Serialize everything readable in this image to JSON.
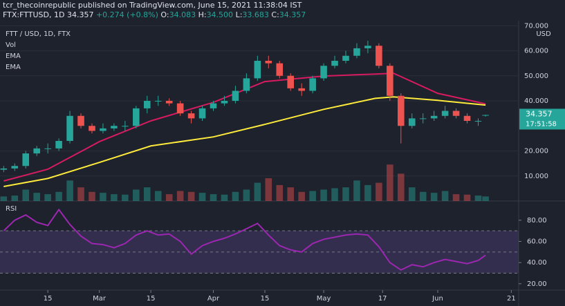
{
  "header": {
    "publisher": "tcr_thecoinrepublic published on TradingView.com, June 15, 2021 11:38:04 IST",
    "symbol": "FTX:FTTUSD, 1D",
    "last": "34.357",
    "change": "+0.274 (+0.8%)",
    "quote": [
      {
        "label": "O:",
        "value": "34.083"
      },
      {
        "label": "H:",
        "value": "34.500"
      },
      {
        "label": "L:",
        "value": "33.683"
      },
      {
        "label": "C:",
        "value": "34.357"
      }
    ]
  },
  "chart_data": [
    {
      "type": "candlestick",
      "title": "FTT / USD, 1D, FTX",
      "volume_label": "Vol",
      "currency": "USD",
      "last_value": 34.357,
      "last_time": "17:51:58",
      "up_color": "#26a69a",
      "down_color": "#ef5350",
      "x": [
        "2021-02-03",
        "2021-02-06",
        "2021-02-09",
        "2021-02-12",
        "2021-02-15",
        "2021-02-18",
        "2021-02-21",
        "2021-02-24",
        "2021-02-27",
        "2021-03-02",
        "2021-03-05",
        "2021-03-08",
        "2021-03-11",
        "2021-03-14",
        "2021-03-17",
        "2021-03-20",
        "2021-03-23",
        "2021-03-26",
        "2021-03-29",
        "2021-04-01",
        "2021-04-04",
        "2021-04-07",
        "2021-04-10",
        "2021-04-13",
        "2021-04-16",
        "2021-04-19",
        "2021-04-22",
        "2021-04-25",
        "2021-04-28",
        "2021-05-01",
        "2021-05-04",
        "2021-05-07",
        "2021-05-10",
        "2021-05-13",
        "2021-05-16",
        "2021-05-19",
        "2021-05-22",
        "2021-05-25",
        "2021-05-28",
        "2021-05-31",
        "2021-06-03",
        "2021-06-06",
        "2021-06-09",
        "2021-06-12",
        "2021-06-14"
      ],
      "open": [
        12.5,
        13,
        14,
        19,
        21,
        21,
        24,
        34,
        30,
        28,
        29,
        30,
        30,
        37,
        40,
        40,
        39,
        35,
        33,
        37,
        39,
        40,
        44,
        49,
        56,
        55,
        50,
        45,
        44,
        49,
        54,
        56,
        58,
        61,
        62,
        54,
        42,
        30,
        33,
        33,
        34,
        36,
        34,
        32,
        34.083
      ],
      "high": [
        14,
        15,
        20,
        22,
        23,
        25,
        36,
        35,
        31,
        31,
        31,
        32,
        38,
        42,
        42,
        41,
        40,
        36,
        38,
        40,
        42,
        46,
        51,
        58,
        58,
        56,
        51,
        47,
        50,
        55,
        58,
        60,
        63,
        64,
        63,
        55,
        43,
        35,
        35,
        36,
        38,
        37,
        35,
        33,
        34.5
      ],
      "low": [
        11.5,
        12,
        13,
        18,
        19,
        20,
        23,
        29,
        27,
        27,
        28,
        28,
        29,
        35,
        38,
        38,
        34,
        31,
        32,
        36,
        38,
        39,
        43,
        48,
        53,
        49,
        44,
        42,
        43,
        48,
        53,
        55,
        57,
        59,
        53,
        40,
        23,
        29,
        31,
        32,
        33,
        33,
        31,
        30,
        33.683
      ],
      "close": [
        13,
        14,
        19,
        21,
        21,
        24,
        34,
        30,
        28,
        29,
        30,
        30,
        37,
        40,
        40,
        39,
        35,
        33,
        37,
        39,
        40,
        44,
        49,
        56,
        55,
        50,
        45,
        44,
        49,
        54,
        56,
        58,
        61,
        62,
        54,
        42,
        30,
        33,
        33,
        34,
        36,
        34,
        32,
        32,
        34.357
      ],
      "volume": [
        10,
        12,
        25,
        18,
        15,
        20,
        45,
        30,
        20,
        18,
        15,
        14,
        25,
        30,
        22,
        15,
        22,
        20,
        18,
        15,
        14,
        20,
        25,
        40,
        50,
        35,
        30,
        20,
        22,
        25,
        28,
        30,
        45,
        35,
        40,
        80,
        60,
        30,
        20,
        18,
        22,
        15,
        14,
        12,
        10
      ],
      "series": [
        {
          "name": "EMA",
          "color": "#d81b60",
          "x": [
            "2021-02-03",
            "2021-02-15",
            "2021-03-01",
            "2021-03-15",
            "2021-04-01",
            "2021-04-15",
            "2021-05-01",
            "2021-05-15",
            "2021-05-20",
            "2021-06-01",
            "2021-06-14"
          ],
          "values": [
            8,
            12.7,
            23.7,
            32,
            39.4,
            47.7,
            49.9,
            50.7,
            51,
            43,
            38.8
          ]
        },
        {
          "name": "EMA",
          "color": "#ffeb3b",
          "x": [
            "2021-02-03",
            "2021-02-15",
            "2021-03-01",
            "2021-03-15",
            "2021-04-01",
            "2021-04-15",
            "2021-05-01",
            "2021-05-15",
            "2021-05-20",
            "2021-06-01",
            "2021-06-14"
          ],
          "values": [
            5.8,
            9,
            15.4,
            22,
            25.6,
            30.6,
            36.6,
            41,
            41.6,
            40.2,
            38.3
          ]
        }
      ],
      "xlim": [
        "2021-02-02",
        "2021-06-23"
      ],
      "ylim": [
        0,
        72
      ],
      "yticks": [
        {
          "value": 10,
          "label": "10.000"
        },
        {
          "value": 20,
          "label": "20.000"
        },
        {
          "value": 40,
          "label": "40.000"
        },
        {
          "value": 50,
          "label": "50.000"
        },
        {
          "value": 60,
          "label": "60.000"
        },
        {
          "value": 70,
          "label": "70.000"
        }
      ]
    },
    {
      "type": "line",
      "title": "RSI",
      "color": "#9c27b0",
      "band_color": "#7e57c2",
      "x": [
        "2021-02-03",
        "2021-02-06",
        "2021-02-09",
        "2021-02-12",
        "2021-02-15",
        "2021-02-18",
        "2021-02-21",
        "2021-02-24",
        "2021-02-27",
        "2021-03-02",
        "2021-03-05",
        "2021-03-08",
        "2021-03-11",
        "2021-03-14",
        "2021-03-17",
        "2021-03-20",
        "2021-03-23",
        "2021-03-26",
        "2021-03-29",
        "2021-04-01",
        "2021-04-04",
        "2021-04-07",
        "2021-04-10",
        "2021-04-13",
        "2021-04-16",
        "2021-04-19",
        "2021-04-22",
        "2021-04-25",
        "2021-04-28",
        "2021-05-01",
        "2021-05-04",
        "2021-05-07",
        "2021-05-10",
        "2021-05-13",
        "2021-05-16",
        "2021-05-19",
        "2021-05-22",
        "2021-05-25",
        "2021-05-28",
        "2021-05-31",
        "2021-06-03",
        "2021-06-06",
        "2021-06-09",
        "2021-06-12",
        "2021-06-14"
      ],
      "values": [
        70,
        80,
        85,
        78,
        75,
        90,
        76,
        65,
        58,
        57,
        54,
        58,
        66,
        70,
        66,
        67,
        60,
        48,
        56,
        60,
        63,
        67,
        72,
        77,
        66,
        56,
        52,
        50,
        58,
        62,
        64,
        66,
        67,
        66,
        55,
        40,
        33,
        38,
        36,
        40,
        43,
        41,
        39,
        42,
        47
      ],
      "levels": [
        30,
        50,
        70
      ],
      "xlim": [
        "2021-02-02",
        "2021-06-23"
      ],
      "ylim": [
        14,
        97.5
      ],
      "yticks": [
        {
          "value": 20,
          "label": "20.00"
        },
        {
          "value": 40,
          "label": "40.00"
        },
        {
          "value": 60,
          "label": "60.00"
        },
        {
          "value": 80,
          "label": "80.00"
        }
      ],
      "xticks": [
        {
          "value": "2021-02-15",
          "label": "15"
        },
        {
          "value": "2021-03-01",
          "label": "Mar"
        },
        {
          "value": "2021-03-15",
          "label": "15"
        },
        {
          "value": "2021-04-01",
          "label": "Apr"
        },
        {
          "value": "2021-04-15",
          "label": "15"
        },
        {
          "value": "2021-05-01",
          "label": "May"
        },
        {
          "value": "2021-05-17",
          "label": "17"
        },
        {
          "value": "2021-06-01",
          "label": "Jun"
        },
        {
          "value": "2021-06-21",
          "label": "21"
        }
      ]
    }
  ]
}
